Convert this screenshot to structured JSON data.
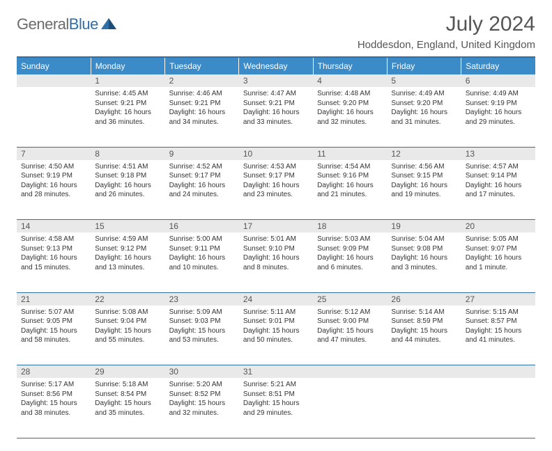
{
  "logo": {
    "word1": "General",
    "word2": "Blue"
  },
  "title": "July 2024",
  "location": "Hoddesdon, England, United Kingdom",
  "colors": {
    "header_bg": "#3b8bc9",
    "header_text": "#ffffff",
    "border": "#2f6fa8",
    "daynum_bg": "#e9e9e9",
    "text": "#333333",
    "title_text": "#555555",
    "logo_gray": "#6b6b6b",
    "logo_blue": "#2f6fa8"
  },
  "weekdays": [
    "Sunday",
    "Monday",
    "Tuesday",
    "Wednesday",
    "Thursday",
    "Friday",
    "Saturday"
  ],
  "weeks": [
    [
      null,
      {
        "n": "1",
        "sr": "4:45 AM",
        "ss": "9:21 PM",
        "dl": "16 hours and 36 minutes."
      },
      {
        "n": "2",
        "sr": "4:46 AM",
        "ss": "9:21 PM",
        "dl": "16 hours and 34 minutes."
      },
      {
        "n": "3",
        "sr": "4:47 AM",
        "ss": "9:21 PM",
        "dl": "16 hours and 33 minutes."
      },
      {
        "n": "4",
        "sr": "4:48 AM",
        "ss": "9:20 PM",
        "dl": "16 hours and 32 minutes."
      },
      {
        "n": "5",
        "sr": "4:49 AM",
        "ss": "9:20 PM",
        "dl": "16 hours and 31 minutes."
      },
      {
        "n": "6",
        "sr": "4:49 AM",
        "ss": "9:19 PM",
        "dl": "16 hours and 29 minutes."
      }
    ],
    [
      {
        "n": "7",
        "sr": "4:50 AM",
        "ss": "9:19 PM",
        "dl": "16 hours and 28 minutes."
      },
      {
        "n": "8",
        "sr": "4:51 AM",
        "ss": "9:18 PM",
        "dl": "16 hours and 26 minutes."
      },
      {
        "n": "9",
        "sr": "4:52 AM",
        "ss": "9:17 PM",
        "dl": "16 hours and 24 minutes."
      },
      {
        "n": "10",
        "sr": "4:53 AM",
        "ss": "9:17 PM",
        "dl": "16 hours and 23 minutes."
      },
      {
        "n": "11",
        "sr": "4:54 AM",
        "ss": "9:16 PM",
        "dl": "16 hours and 21 minutes."
      },
      {
        "n": "12",
        "sr": "4:56 AM",
        "ss": "9:15 PM",
        "dl": "16 hours and 19 minutes."
      },
      {
        "n": "13",
        "sr": "4:57 AM",
        "ss": "9:14 PM",
        "dl": "16 hours and 17 minutes."
      }
    ],
    [
      {
        "n": "14",
        "sr": "4:58 AM",
        "ss": "9:13 PM",
        "dl": "16 hours and 15 minutes."
      },
      {
        "n": "15",
        "sr": "4:59 AM",
        "ss": "9:12 PM",
        "dl": "16 hours and 13 minutes."
      },
      {
        "n": "16",
        "sr": "5:00 AM",
        "ss": "9:11 PM",
        "dl": "16 hours and 10 minutes."
      },
      {
        "n": "17",
        "sr": "5:01 AM",
        "ss": "9:10 PM",
        "dl": "16 hours and 8 minutes."
      },
      {
        "n": "18",
        "sr": "5:03 AM",
        "ss": "9:09 PM",
        "dl": "16 hours and 6 minutes."
      },
      {
        "n": "19",
        "sr": "5:04 AM",
        "ss": "9:08 PM",
        "dl": "16 hours and 3 minutes."
      },
      {
        "n": "20",
        "sr": "5:05 AM",
        "ss": "9:07 PM",
        "dl": "16 hours and 1 minute."
      }
    ],
    [
      {
        "n": "21",
        "sr": "5:07 AM",
        "ss": "9:05 PM",
        "dl": "15 hours and 58 minutes."
      },
      {
        "n": "22",
        "sr": "5:08 AM",
        "ss": "9:04 PM",
        "dl": "15 hours and 55 minutes."
      },
      {
        "n": "23",
        "sr": "5:09 AM",
        "ss": "9:03 PM",
        "dl": "15 hours and 53 minutes."
      },
      {
        "n": "24",
        "sr": "5:11 AM",
        "ss": "9:01 PM",
        "dl": "15 hours and 50 minutes."
      },
      {
        "n": "25",
        "sr": "5:12 AM",
        "ss": "9:00 PM",
        "dl": "15 hours and 47 minutes."
      },
      {
        "n": "26",
        "sr": "5:14 AM",
        "ss": "8:59 PM",
        "dl": "15 hours and 44 minutes."
      },
      {
        "n": "27",
        "sr": "5:15 AM",
        "ss": "8:57 PM",
        "dl": "15 hours and 41 minutes."
      }
    ],
    [
      {
        "n": "28",
        "sr": "5:17 AM",
        "ss": "8:56 PM",
        "dl": "15 hours and 38 minutes."
      },
      {
        "n": "29",
        "sr": "5:18 AM",
        "ss": "8:54 PM",
        "dl": "15 hours and 35 minutes."
      },
      {
        "n": "30",
        "sr": "5:20 AM",
        "ss": "8:52 PM",
        "dl": "15 hours and 32 minutes."
      },
      {
        "n": "31",
        "sr": "5:21 AM",
        "ss": "8:51 PM",
        "dl": "15 hours and 29 minutes."
      },
      null,
      null,
      null
    ]
  ],
  "labels": {
    "sunrise": "Sunrise:",
    "sunset": "Sunset:",
    "daylight": "Daylight:"
  }
}
